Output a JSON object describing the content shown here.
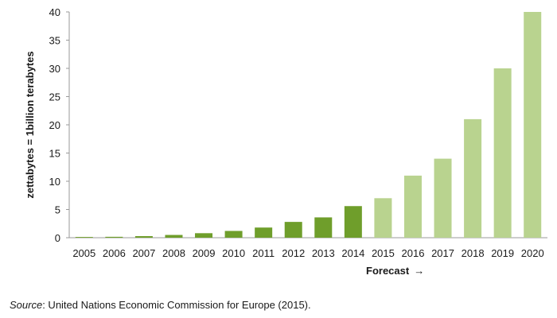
{
  "chart_data": {
    "type": "bar",
    "title": "",
    "xlabel": "",
    "ylabel": "zettabytes  = 1billion  terabytes",
    "categories": [
      "2005",
      "2006",
      "2007",
      "2008",
      "2009",
      "2010",
      "2011",
      "2012",
      "2013",
      "2014",
      "2015",
      "2016",
      "2017",
      "2018",
      "2019",
      "2020"
    ],
    "values": [
      0.13,
      0.16,
      0.28,
      0.49,
      0.8,
      1.2,
      1.8,
      2.8,
      3.6,
      5.6,
      7.0,
      11.0,
      14.0,
      21.0,
      30.0,
      40.0
    ],
    "forecast_from": "2015",
    "ylim": [
      0,
      40
    ],
    "yticks": [
      0,
      5,
      10,
      15,
      20,
      25,
      30,
      35,
      40
    ],
    "grid": false,
    "colors": {
      "actual": "#6f9e2b",
      "forecast": "#b9d38f",
      "axis": "#999999"
    }
  },
  "annotation": {
    "forecast_label": "Forecast",
    "forecast_arrow": "→"
  },
  "source": {
    "label": "Source",
    "text": ": United Nations Economic Commission for Europe (2015)."
  }
}
